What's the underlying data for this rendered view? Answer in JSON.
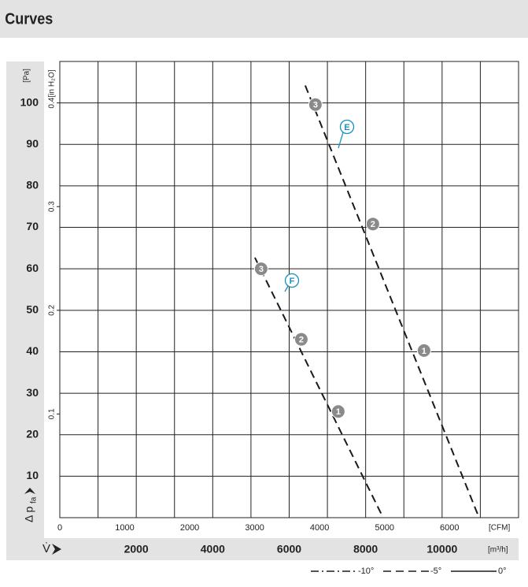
{
  "header": {
    "title": "Curves"
  },
  "chart_data": {
    "type": "line",
    "ylabel": "[Pa]",
    "y2label": "[in H₂O]",
    "ylabel_symbol": "Δ p",
    "ylabel_sub": "fa",
    "xlabel": "[m³/h]",
    "x2label": "[CFM]",
    "xlabel_symbol": "V̇",
    "xlim": [
      0,
      12000
    ],
    "xticks": [
      2000,
      4000,
      6000,
      8000,
      10000
    ],
    "xgrid": [
      1000,
      2000,
      3000,
      4000,
      5000,
      6000,
      7000,
      8000,
      9000,
      10000,
      11000
    ],
    "x2lim": [
      0,
      7063
    ],
    "x2ticks": [
      0,
      1000,
      2000,
      3000,
      4000,
      5000,
      6000
    ],
    "ylim": [
      0,
      110
    ],
    "yticks": [
      10,
      20,
      30,
      40,
      50,
      60,
      70,
      80,
      90,
      100
    ],
    "y2lim": [
      0,
      0.44
    ],
    "y2ticks": [
      0.1,
      0.2,
      0.3,
      0.4
    ],
    "grid": true,
    "series": [
      {
        "name": "E",
        "color": "#1a1a1a",
        "dash": "dashed",
        "x": [
          6420,
          10967
        ],
        "values": [
          104.2,
          0
        ],
        "points": {
          "x": [
            9527,
            8189,
            6687
          ],
          "values": [
            40.3,
            70.8,
            99.6
          ],
          "labels": [
            "1",
            "2",
            "3"
          ]
        }
      },
      {
        "name": "F",
        "color": "#1a1a1a",
        "dash": "dashed",
        "x": [
          5103,
          8457
        ],
        "values": [
          62.7,
          0
        ],
        "points": {
          "x": [
            7284,
            6317,
            5267
          ],
          "values": [
            25.6,
            43,
            60
          ],
          "labels": [
            "1",
            "2",
            "3"
          ]
        }
      }
    ],
    "legend": [
      {
        "label": "-10°",
        "dash": "dashdot"
      },
      {
        "label": "-5°",
        "dash": "dashed"
      },
      {
        "label": "0°",
        "dash": "solid"
      }
    ]
  }
}
